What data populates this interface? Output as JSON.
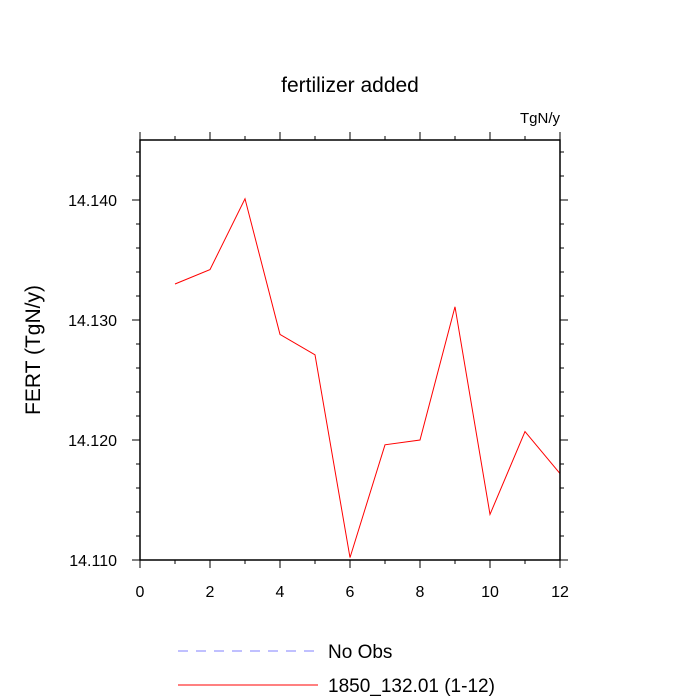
{
  "chart_data": {
    "type": "line",
    "title": "fertilizer added",
    "units_label": "TgN/y",
    "xlabel": "",
    "ylabel": "FERT  (TgN/y)",
    "xlim": [
      0,
      12
    ],
    "ylim": [
      14.11,
      14.145
    ],
    "x_ticks": [
      0,
      2,
      4,
      6,
      8,
      10,
      12
    ],
    "x_tick_labels": [
      "0",
      "2",
      "4",
      "6",
      "8",
      "10",
      "12"
    ],
    "y_ticks": [
      14.11,
      14.12,
      14.13,
      14.14
    ],
    "y_tick_labels": [
      "14.110",
      "14.120",
      "14.130",
      "14.140"
    ],
    "grid": false,
    "legend_position": "bottom",
    "series": [
      {
        "name": "1850_132.01 (1-12)",
        "color": "#ff0000",
        "x": [
          1,
          2,
          3,
          4,
          5,
          6,
          7,
          8,
          9,
          10,
          11,
          12
        ],
        "values": [
          14.133,
          14.1342,
          14.1401,
          14.1288,
          14.1271,
          14.1102,
          14.1196,
          14.12,
          14.1311,
          14.1138,
          14.1207,
          14.1172
        ]
      }
    ],
    "legend": [
      {
        "label": "No Obs",
        "color": "#8080ff",
        "style": "dashed"
      },
      {
        "label": "1850_132.01 (1-12)",
        "color": "#ff0000",
        "style": "solid"
      }
    ]
  }
}
